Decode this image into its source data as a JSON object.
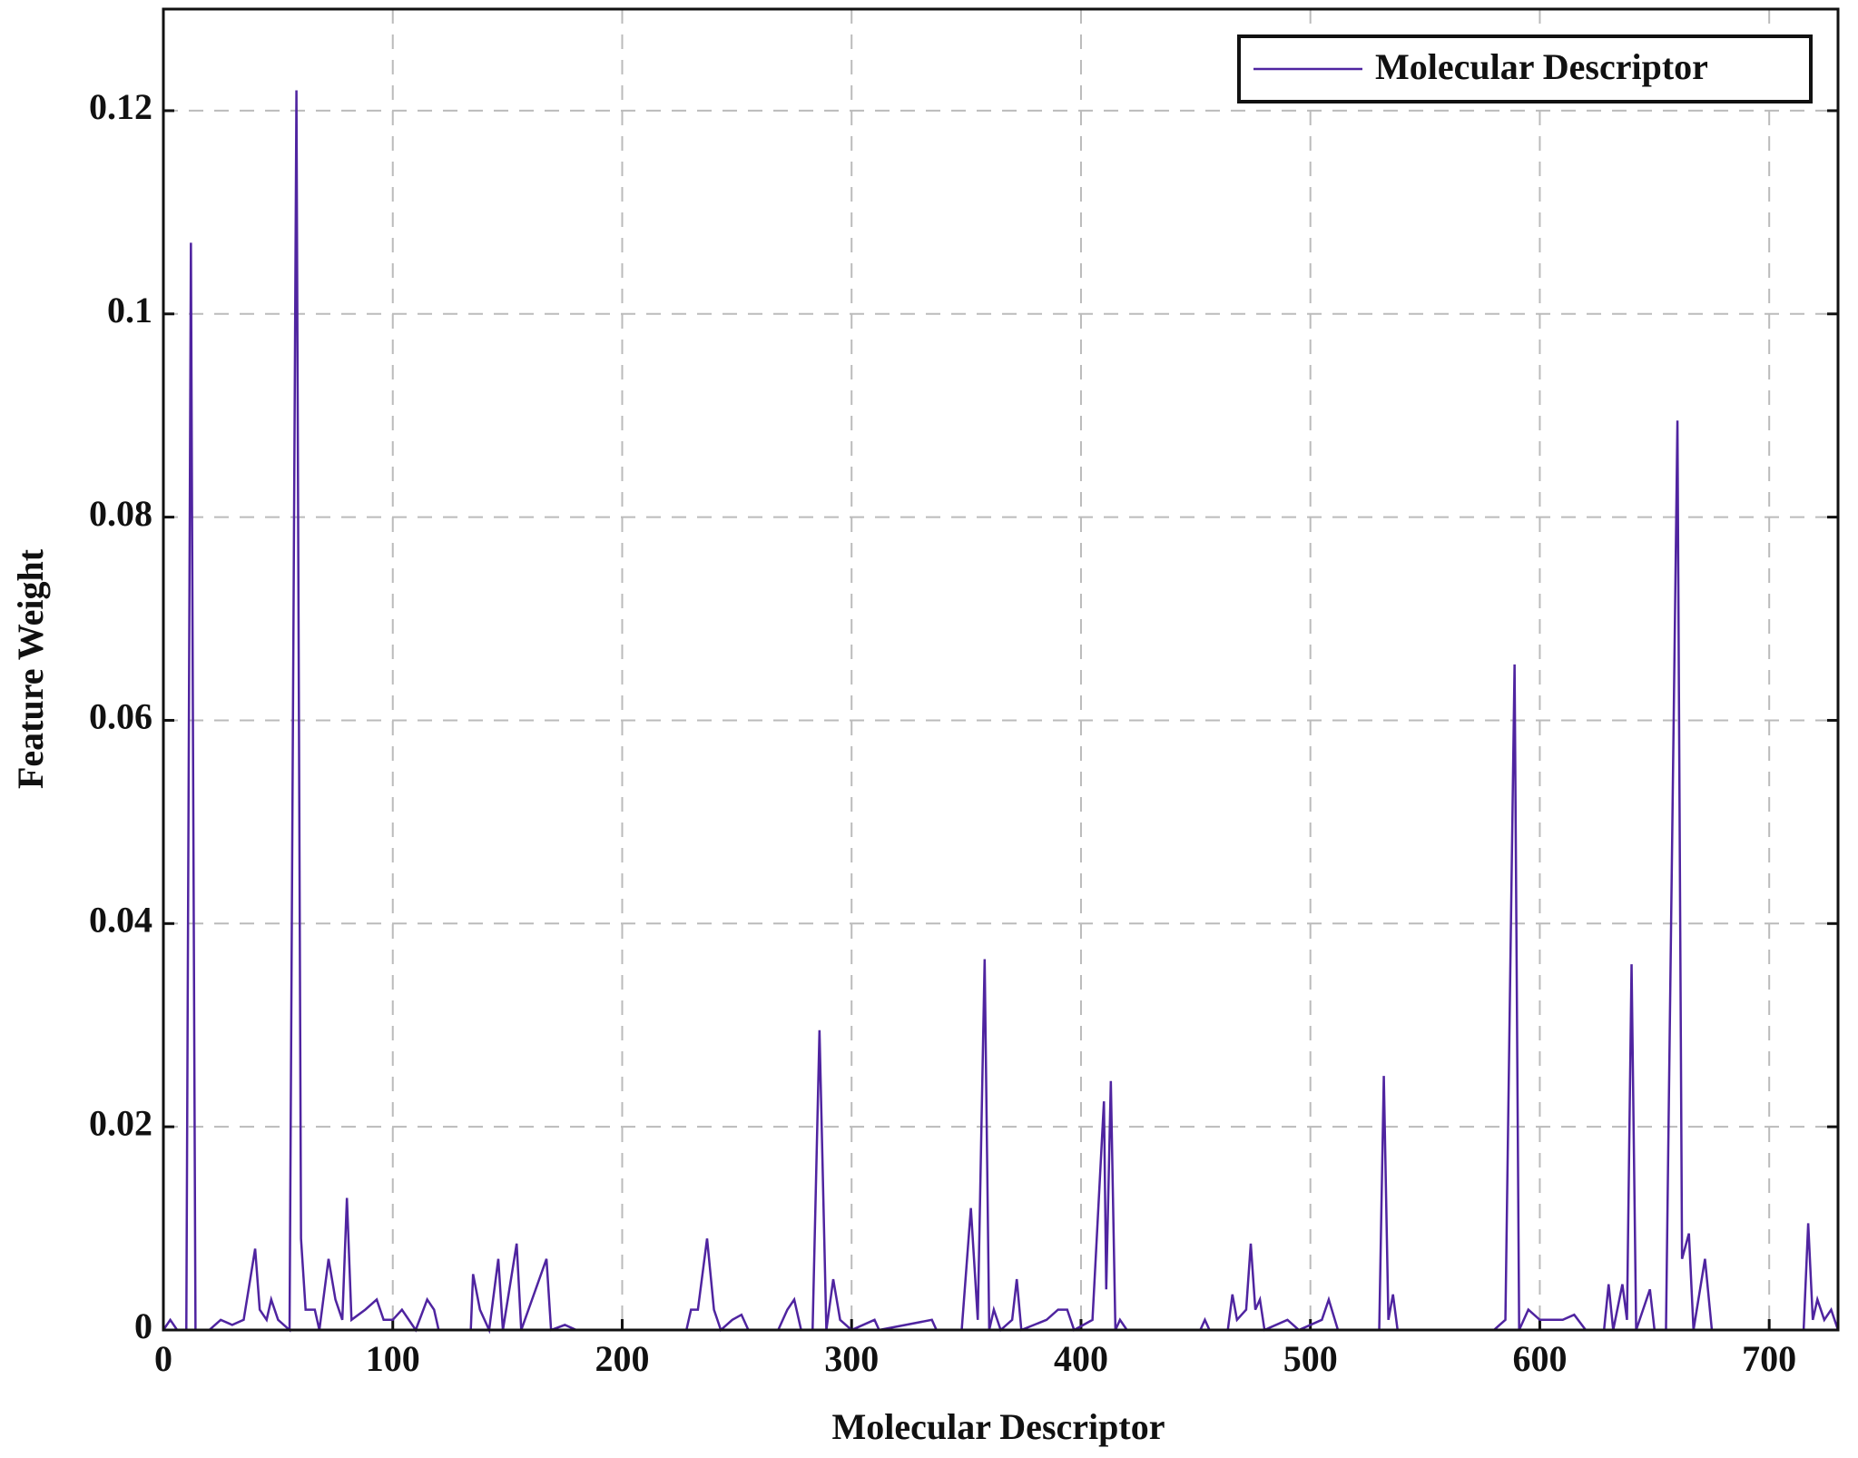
{
  "chart_data": {
    "type": "line",
    "x_label": "Molecular Descriptor",
    "y_label": "Feature Weight",
    "xlim": [
      0,
      730
    ],
    "ylim": [
      0,
      0.13
    ],
    "xticks": [
      0,
      100,
      200,
      300,
      400,
      500,
      600,
      700
    ],
    "yticks": [
      0,
      0.02,
      0.04,
      0.06,
      0.08,
      {
        "value": 0.1,
        "label": "0.1"
      },
      0.12
    ],
    "grid": true,
    "legend": "upper right",
    "x": [
      0,
      3,
      6,
      10,
      12,
      14,
      20,
      25,
      30,
      35,
      40,
      42,
      45,
      47,
      50,
      55,
      58,
      60,
      62,
      66,
      68,
      72,
      75,
      78,
      80,
      82,
      88,
      93,
      96,
      100,
      104,
      110,
      115,
      118,
      120,
      134,
      135,
      138,
      142,
      146,
      148,
      154,
      156,
      167,
      169,
      175,
      180,
      228,
      230,
      233,
      237,
      240,
      243,
      248,
      252,
      255,
      268,
      272,
      275,
      278,
      283,
      286,
      289,
      292,
      295,
      300,
      310,
      312,
      335,
      337,
      348,
      352,
      355,
      358,
      360,
      362,
      365,
      370,
      372,
      374,
      385,
      390,
      394,
      397,
      405,
      410,
      411,
      413,
      415,
      417,
      420,
      452,
      454,
      456,
      464,
      466,
      468,
      472,
      474,
      476,
      478,
      480,
      490,
      495,
      505,
      508,
      512,
      530,
      532,
      534,
      536,
      538,
      580,
      585,
      589,
      591,
      595,
      600,
      605,
      610,
      615,
      620,
      628,
      630,
      632,
      636,
      638,
      640,
      642,
      648,
      650,
      655,
      660,
      662,
      665,
      667,
      672,
      675,
      715,
      717,
      719,
      721,
      724,
      727,
      730
    ],
    "series": [
      {
        "name": "Molecular Descriptor",
        "color": "#4f24a0",
        "values": [
          0,
          0.001,
          0,
          0,
          0.107,
          0,
          0,
          0.001,
          0.0005,
          0.001,
          0.008,
          0.002,
          0.001,
          0.003,
          0.001,
          0,
          0.122,
          0.009,
          0.002,
          0.002,
          0,
          0.007,
          0.003,
          0.001,
          0.013,
          0.001,
          0.002,
          0.003,
          0.001,
          0.001,
          0.002,
          0,
          0.003,
          0.002,
          0,
          0,
          0.0055,
          0.002,
          0,
          0.007,
          0,
          0.0085,
          0,
          0.007,
          0,
          0.0005,
          0,
          0,
          0.002,
          0.002,
          0.009,
          0.002,
          0,
          0.001,
          0.0015,
          0,
          0,
          0.002,
          0.003,
          0,
          0,
          0.0295,
          0,
          0.005,
          0.001,
          0,
          0.001,
          0,
          0.001,
          0,
          0,
          0.012,
          0.001,
          0.0365,
          0,
          0.002,
          0,
          0.001,
          0.005,
          0,
          0.001,
          0.002,
          0.002,
          0,
          0.001,
          0.0225,
          0.004,
          0.0245,
          0,
          0.001,
          0,
          0,
          0.001,
          0,
          0,
          0.0035,
          0.001,
          0.002,
          0.0085,
          0.002,
          0.003,
          0,
          0.001,
          0,
          0.001,
          0.003,
          0,
          0,
          0.025,
          0.001,
          0.0035,
          0,
          0,
          0.001,
          0.0655,
          0,
          0.002,
          0.001,
          0.001,
          0.001,
          0.0015,
          0,
          0,
          0.0045,
          0,
          0.0045,
          0.001,
          0.036,
          0,
          0.004,
          0,
          0,
          0.0895,
          0.007,
          0.0095,
          0,
          0.007,
          0,
          0,
          0.0105,
          0.001,
          0.003,
          0.001,
          0.002,
          0
        ]
      }
    ]
  }
}
